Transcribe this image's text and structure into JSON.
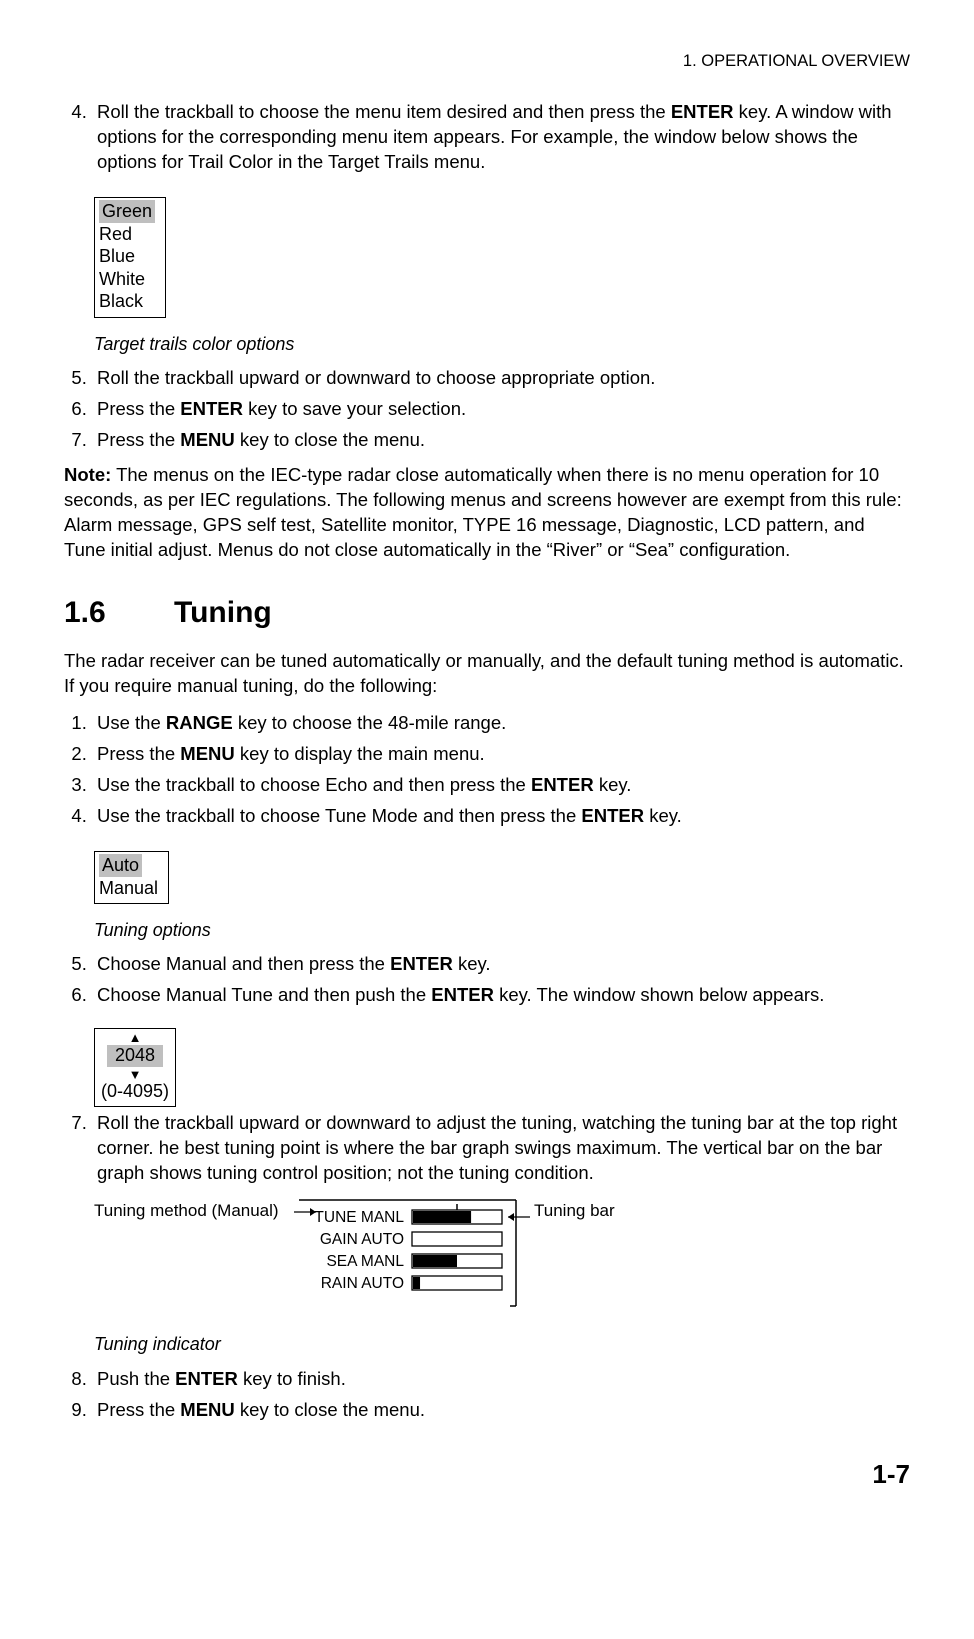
{
  "header": {
    "chapter": "1. OPERATIONAL OVERVIEW"
  },
  "step4": {
    "num": "4.",
    "text_a": "Roll the trackball to choose the menu item desired and then press the ",
    "key1": "ENTER",
    "text_b": " key. A window with options for the corresponding menu item appears. For example, the window below shows the options for Trail Color in the Target Trails menu."
  },
  "color_options": {
    "selected": "Green",
    "items": [
      "Red",
      "Blue",
      "White",
      "Black"
    ],
    "caption": "Target trails color options"
  },
  "step5": {
    "num": "5.",
    "text": "Roll the trackball upward or downward to choose appropriate option."
  },
  "step6": {
    "num": "6.",
    "text_a": "Press the ",
    "key": "ENTER",
    "text_b": " key to save your selection."
  },
  "step7": {
    "num": "7.",
    "text_a": "Press the ",
    "key": "MENU",
    "text_b": " key to close the menu."
  },
  "note": {
    "label": "Note:",
    "text": " The menus on the IEC-type radar close automatically when there is no menu operation for 10 seconds, as per IEC regulations. The following menus and screens however are exempt from this rule: Alarm message, GPS self test, Satellite monitor, TYPE 16 message, Diagnostic, LCD pattern, and Tune initial adjust. Menus do not close automatically in the “River” or “Sea” configuration."
  },
  "section": {
    "num": "1.6",
    "title": "Tuning"
  },
  "intro": "The radar receiver can be tuned automatically or manually, and the default tuning method is automatic. If you require manual tuning, do the following:",
  "t1": {
    "num": "1.",
    "text_a": "Use the ",
    "key": "RANGE",
    "text_b": " key to choose the 48-mile range."
  },
  "t2": {
    "num": "2.",
    "text_a": "Press the ",
    "key": "MENU",
    "text_b": " key to display the main menu."
  },
  "t3": {
    "num": "3.",
    "text_a": "Use the trackball to choose Echo and then press the ",
    "key": "ENTER",
    "text_b": " key."
  },
  "t4": {
    "num": "4.",
    "text_a": "Use the trackball to choose Tune Mode and then press the ",
    "key": "ENTER",
    "text_b": " key."
  },
  "tuning_options": {
    "selected": "Auto",
    "other": "Manual",
    "caption": "Tuning options"
  },
  "t5": {
    "num": "5.",
    "text_a": "Choose Manual and then press the ",
    "key": "ENTER",
    "text_b": " key."
  },
  "t6": {
    "num": "6.",
    "text_a": "Choose Manual Tune and then push the ",
    "key": "ENTER",
    "text_b": " key. The window shown below appears."
  },
  "tune_window": {
    "value": "2048",
    "range": "(0-4095)"
  },
  "t7": {
    "num": "7.",
    "text": "Roll the trackball upward or downward to adjust the tuning, watching the tuning bar at the top right corner. he best tuning point is where the bar graph swings maximum. The vertical bar on the bar graph shows tuning control position; not the tuning condition."
  },
  "indicator": {
    "left_label": "Tuning method (Manual)",
    "right_label": "Tuning bar",
    "rows": [
      {
        "label": "TUNE MANL",
        "fill": 0.66,
        "tick": 0.5
      },
      {
        "label": "GAIN AUTO",
        "fill": 0.0
      },
      {
        "label": "SEA  MANL",
        "fill": 0.5
      },
      {
        "label": "RAIN AUTO",
        "fill": 0.08
      }
    ],
    "caption": "Tuning indicator",
    "colors": {
      "fill": "#000000",
      "stroke": "#000000",
      "bg": "#ffffff"
    }
  },
  "t8": {
    "num": "8.",
    "text_a": "Push the ",
    "key": "ENTER",
    "text_b": " key to finish."
  },
  "t9": {
    "num": "9.",
    "text_a": "Press the ",
    "key": "MENU",
    "text_b": " key to close the menu."
  },
  "page_num": "1-7"
}
